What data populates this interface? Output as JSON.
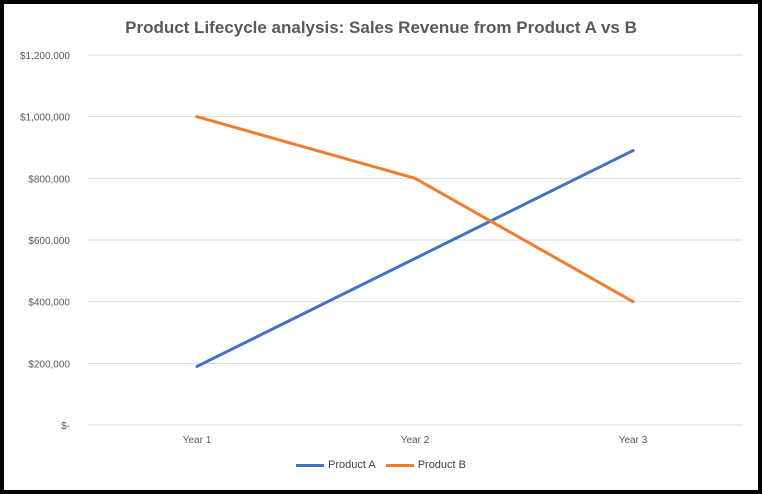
{
  "chart_data": {
    "type": "line",
    "title": "Product Lifecycle analysis: Sales Revenue from Product A vs B",
    "xlabel": "",
    "ylabel": "",
    "categories": [
      "Year 1",
      "Year 2",
      "Year 3"
    ],
    "series": [
      {
        "name": "Product A",
        "values": [
          190000,
          540000,
          890000
        ],
        "color": "#4472C4"
      },
      {
        "name": "Product B",
        "values": [
          1000000,
          800000,
          400000
        ],
        "color": "#ED7D31"
      }
    ],
    "ylim": [
      0,
      1200000
    ],
    "yticks": [
      {
        "value": 0,
        "label": "$-"
      },
      {
        "value": 200000,
        "label": "$200,000"
      },
      {
        "value": 400000,
        "label": "$400,000"
      },
      {
        "value": 600000,
        "label": "$600,000"
      },
      {
        "value": 800000,
        "label": "$800,000"
      },
      {
        "value": 1000000,
        "label": "$1,000,000"
      },
      {
        "value": 1200000,
        "label": "$1,200,000"
      }
    ],
    "grid": true,
    "legend_position": "bottom"
  }
}
